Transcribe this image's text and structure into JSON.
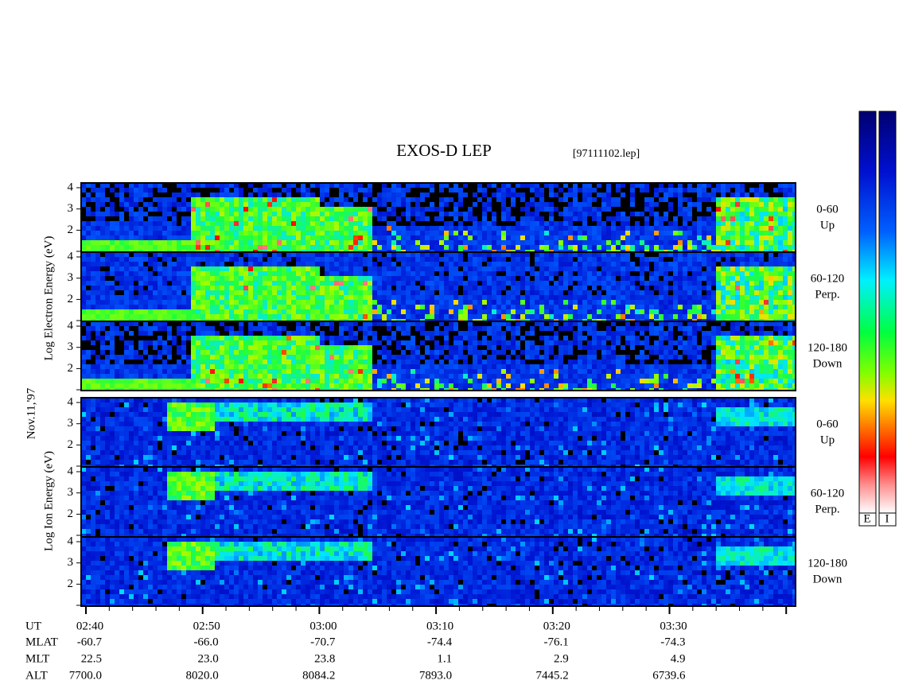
{
  "header": {
    "title": "EXOS-D LEP",
    "file": "[97111102.lep]"
  },
  "axis_labels": {
    "electron": "Log Electron Energy (eV)",
    "ion": "Log Ion Energy (eV)",
    "date": "Nov.11,'97"
  },
  "panels": [
    {
      "angle": "0-60",
      "direction": "Up"
    },
    {
      "angle": "60-120",
      "direction": "Perp."
    },
    {
      "angle": "120-180",
      "direction": "Down"
    },
    {
      "angle": "0-60",
      "direction": "Up"
    },
    {
      "angle": "60-120",
      "direction": "Perp."
    },
    {
      "angle": "120-180",
      "direction": "Down"
    }
  ],
  "energy_ticks": [
    "4",
    "3",
    "2"
  ],
  "colorbars": [
    "E",
    "I"
  ],
  "orbit_table": {
    "rows": [
      {
        "label": "UT",
        "values": [
          "02:40",
          "02:50",
          "03:00",
          "03:10",
          "03:20",
          "03:30"
        ]
      },
      {
        "label": "MLAT",
        "values": [
          "-60.7",
          "-66.0",
          "-70.7",
          "-74.4",
          "-76.1",
          "-74.3"
        ]
      },
      {
        "label": "MLT",
        "values": [
          "22.5",
          "23.0",
          "23.8",
          "1.1",
          "2.9",
          "4.9"
        ]
      },
      {
        "label": "ALT",
        "values": [
          "7700.0",
          "8020.0",
          "8084.2",
          "7893.0",
          "7445.2",
          "6739.6"
        ]
      }
    ]
  }
}
